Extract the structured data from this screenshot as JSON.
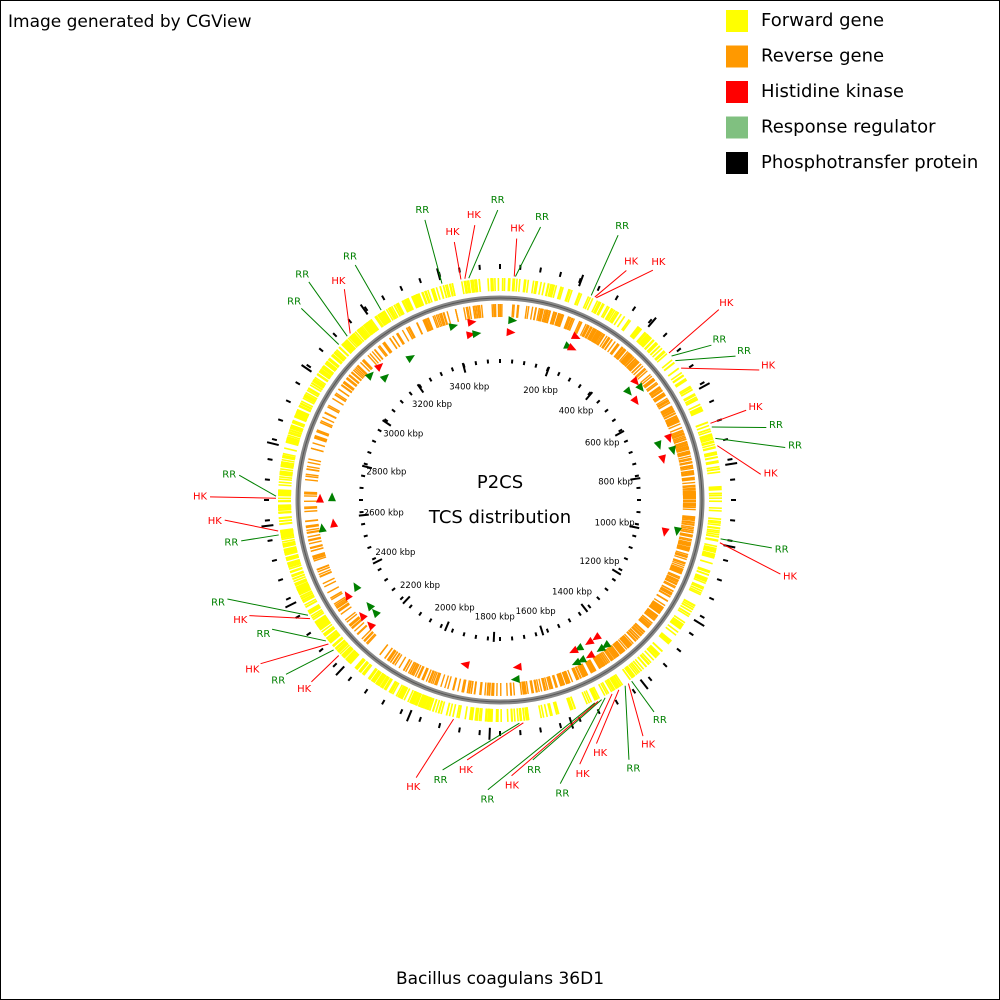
{
  "header": {
    "credit": "Image generated by CGView"
  },
  "legend": [
    {
      "label": "Forward gene",
      "color": "#ffff00"
    },
    {
      "label": "Reverse gene",
      "color": "#ff9900"
    },
    {
      "label": "Histidine kinase",
      "color": "#ff0000"
    },
    {
      "label": "Response regulator",
      "color": "#80c080"
    },
    {
      "label": "Phosphotransfer protein",
      "color": "#000000"
    }
  ],
  "map": {
    "title": "P2CS",
    "subtitle": "TCS distribution",
    "range": [
      0,
      3550
    ],
    "ticks": [
      {
        "value": 200,
        "label": "200 kbp"
      },
      {
        "value": 400,
        "label": "400 kbp"
      },
      {
        "value": 600,
        "label": "600 kbp"
      },
      {
        "value": 800,
        "label": "800 kbp"
      },
      {
        "value": 1000,
        "label": "1000 kbp"
      },
      {
        "value": 1200,
        "label": "1200 kbp"
      },
      {
        "value": 1400,
        "label": "1400 kbp"
      },
      {
        "value": 1600,
        "label": "1600 kbp"
      },
      {
        "value": 1800,
        "label": "1800 kbp"
      },
      {
        "value": 2000,
        "label": "2000 kbp"
      },
      {
        "value": 2200,
        "label": "2200 kbp"
      },
      {
        "value": 2400,
        "label": "2400 kbp"
      },
      {
        "value": 2600,
        "label": "2600 kbp"
      },
      {
        "value": 2800,
        "label": "2800 kbp"
      },
      {
        "value": 3000,
        "label": "3000 kbp"
      },
      {
        "value": 3200,
        "label": "3200 kbp"
      },
      {
        "value": 3400,
        "label": "3400 kbp"
      }
    ],
    "features": [
      {
        "label": "HK",
        "position": 36,
        "color": "#ff0000"
      },
      {
        "label": "RR",
        "position": 39,
        "color": "#008000"
      },
      {
        "label": "RR",
        "position": 237,
        "color": "#008000"
      },
      {
        "label": "HK",
        "position": 247,
        "color": "#ff0000"
      },
      {
        "label": "HK",
        "position": 251,
        "color": "#ff0000"
      },
      {
        "label": "HK",
        "position": 483,
        "color": "#ff0000"
      },
      {
        "label": "RR",
        "position": 493,
        "color": "#008000"
      },
      {
        "label": "RR",
        "position": 508,
        "color": "#008000"
      },
      {
        "label": "HK",
        "position": 532,
        "color": "#ff0000"
      },
      {
        "label": "HK",
        "position": 690,
        "color": "#ff0000"
      },
      {
        "label": "RR",
        "position": 700,
        "color": "#008000"
      },
      {
        "label": "RR",
        "position": 730,
        "color": "#008000"
      },
      {
        "label": "HK",
        "position": 749,
        "color": "#ff0000"
      },
      {
        "label": "RR",
        "position": 986,
        "color": "#008000"
      },
      {
        "label": "HK",
        "position": 996,
        "color": "#ff0000"
      },
      {
        "label": "RR",
        "position": 1420,
        "color": "#008000"
      },
      {
        "label": "HK",
        "position": 1430,
        "color": "#ff0000"
      },
      {
        "label": "RR",
        "position": 1440,
        "color": "#008000"
      },
      {
        "label": "HK",
        "position": 1459,
        "color": "#ff0000"
      },
      {
        "label": "HK",
        "position": 1479,
        "color": "#ff0000"
      },
      {
        "label": "RR",
        "position": 1499,
        "color": "#008000"
      },
      {
        "label": "RR",
        "position": 1509,
        "color": "#008000"
      },
      {
        "label": "HK",
        "position": 1519,
        "color": "#ff0000"
      },
      {
        "label": "RR",
        "position": 1528,
        "color": "#008000"
      },
      {
        "label": "HK",
        "position": 1716,
        "color": "#ff0000"
      },
      {
        "label": "RR",
        "position": 1726,
        "color": "#008000"
      },
      {
        "label": "HK",
        "position": 1893,
        "color": "#ff0000"
      },
      {
        "label": "HK",
        "position": 2229,
        "color": "#ff0000"
      },
      {
        "label": "RR",
        "position": 2248,
        "color": "#008000"
      },
      {
        "label": "HK",
        "position": 2268,
        "color": "#ff0000"
      },
      {
        "label": "RR",
        "position": 2278,
        "color": "#008000"
      },
      {
        "label": "HK",
        "position": 2347,
        "color": "#ff0000"
      },
      {
        "label": "RR",
        "position": 2357,
        "color": "#008000"
      },
      {
        "label": "RR",
        "position": 2574,
        "color": "#008000"
      },
      {
        "label": "HK",
        "position": 2584,
        "color": "#ff0000"
      },
      {
        "label": "HK",
        "position": 2667,
        "color": "#ff0000"
      },
      {
        "label": "RR",
        "position": 2672,
        "color": "#008000"
      },
      {
        "label": "RR",
        "position": 3096,
        "color": "#008000"
      },
      {
        "label": "RR",
        "position": 3126,
        "color": "#008000"
      },
      {
        "label": "HK",
        "position": 3136,
        "color": "#ff0000"
      },
      {
        "label": "RR",
        "position": 3234,
        "color": "#008000"
      },
      {
        "label": "RR",
        "position": 3402,
        "color": "#008000"
      },
      {
        "label": "HK",
        "position": 3451,
        "color": "#ff0000"
      },
      {
        "label": "HK",
        "position": 3461,
        "color": "#ff0000"
      },
      {
        "label": "RR",
        "position": 3471,
        "color": "#008000"
      }
    ]
  },
  "footer": {
    "organism": "Bacillus coagulans 36D1"
  }
}
